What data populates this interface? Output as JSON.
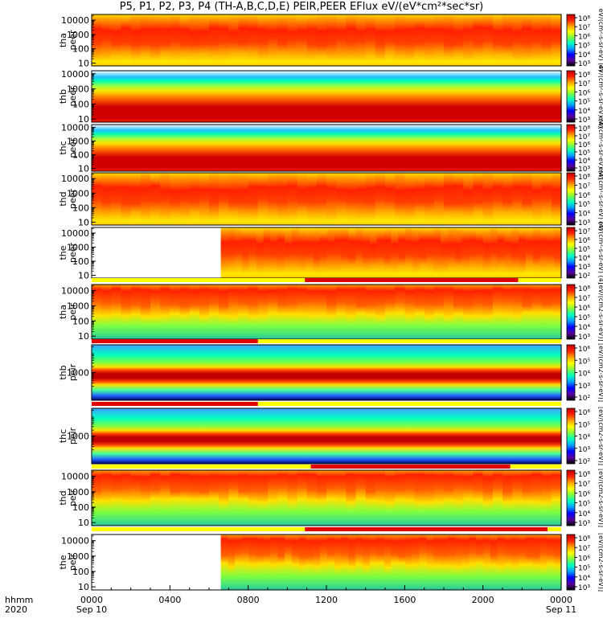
{
  "title": "P5, P1, P2, P3, P4 (TH-A,B,C,D,E) PEIR,PEER EFlux eV/(eV*cm²*sec*sr)",
  "time_axis": {
    "row_label_top": "hhmm",
    "row_label_bottom": "2020",
    "ticks": [
      {
        "hour": 0,
        "label": "0000",
        "date": "Sep 10"
      },
      {
        "hour": 4,
        "label": "0400",
        "date": ""
      },
      {
        "hour": 8,
        "label": "0800",
        "date": ""
      },
      {
        "hour": 12,
        "label": "1200",
        "date": ""
      },
      {
        "hour": 16,
        "label": "1600",
        "date": ""
      },
      {
        "hour": 20,
        "label": "2000",
        "date": ""
      },
      {
        "hour": 24,
        "label": "0000",
        "date": "Sep 11"
      }
    ]
  },
  "colorbar_label_electrons": "eV/(cm²-s-sr-eV) (4)",
  "colorbar_label_ions": "[eV/(cm2-s-sr-eV)]",
  "bottom_colorbar_label": "[eV/(cm2-s-sr-eV)]",
  "chart_data": {
    "type": "heatmap",
    "x_unit": "hour of day",
    "xlim": [
      0,
      24
    ],
    "colormap": [
      "#000000",
      "#5a00a0",
      "#0000ff",
      "#00a0ff",
      "#00ffc0",
      "#80ff40",
      "#ffff00",
      "#ffa000",
      "#ff2000",
      "#c00000"
    ],
    "panels": [
      {
        "id": "tha-peer",
        "probe": "tha",
        "species": "peer",
        "ylabel": [
          "tha",
          "peer"
        ],
        "yticks": [
          "10000",
          "1000",
          "100",
          "10"
        ],
        "yrange_log10": [
          0.8,
          4.4
        ],
        "cbar_ticks": [
          "10⁸",
          "10⁷",
          "10⁶",
          "10⁵",
          "10⁴",
          "10³"
        ],
        "data_start_hour": 0,
        "profile": "e-outer",
        "state_bar": null
      },
      {
        "id": "thb-peer",
        "probe": "thb",
        "species": "peer",
        "ylabel": [
          "thb",
          "peer"
        ],
        "yticks": [
          "10000",
          "1000",
          "100",
          "10"
        ],
        "yrange_log10": [
          0.8,
          4.2
        ],
        "cbar_ticks": [
          "10⁸",
          "10⁷",
          "10⁶",
          "10⁵",
          "10⁴",
          "10³"
        ],
        "data_start_hour": 0,
        "profile": "e-wind",
        "state_bar": null
      },
      {
        "id": "thc-peer",
        "probe": "thc",
        "species": "peer",
        "ylabel": [
          "thc",
          "peer"
        ],
        "yticks": [
          "10000",
          "1000",
          "100",
          "10"
        ],
        "yrange_log10": [
          0.8,
          4.2
        ],
        "cbar_ticks": [
          "10⁸",
          "10⁷",
          "10⁶",
          "10⁵",
          "10⁴",
          "10³"
        ],
        "data_start_hour": 0,
        "profile": "e-wind",
        "state_bar": null
      },
      {
        "id": "thd-peer",
        "probe": "thd",
        "species": "peer",
        "ylabel": [
          "thd",
          "peer"
        ],
        "yticks": [
          "10000",
          "1000",
          "100",
          "10"
        ],
        "yrange_log10": [
          0.8,
          4.4
        ],
        "cbar_ticks": [
          "10⁸",
          "10⁷",
          "10⁶",
          "10⁵",
          "10⁴",
          "10³"
        ],
        "data_start_hour": 0,
        "profile": "e-outer",
        "state_bar": null
      },
      {
        "id": "the-peer",
        "probe": "the",
        "species": "peer",
        "ylabel": [
          "the",
          "peer"
        ],
        "yticks": [
          "10000",
          "1000",
          "100",
          "10"
        ],
        "yrange_log10": [
          0.8,
          4.4
        ],
        "cbar_ticks": [
          "10⁷",
          "10⁶",
          "10⁵",
          "10⁴",
          "10³",
          "10²"
        ],
        "data_start_hour": 6.6,
        "profile": "e-outer",
        "state_bar": null
      },
      {
        "id": "tha-peir",
        "probe": "tha",
        "species": "peir",
        "ylabel": [
          "tha",
          "peir"
        ],
        "yticks": [
          "10000",
          "1000",
          "100",
          "10"
        ],
        "yrange_log10": [
          0.8,
          4.4
        ],
        "cbar_ticks": [
          "10⁸",
          "10⁷",
          "10⁶",
          "10⁵",
          "10⁴",
          "10³"
        ],
        "data_start_hour": 0,
        "profile": "i-outer",
        "state_bar": {
          "yellow_until_hour": 10.9,
          "red_from_hour": 10.9,
          "red_until_hour": 21.8
        }
      },
      {
        "id": "thb-peir",
        "probe": "thb",
        "species": "peir",
        "ylabel": [
          "thb",
          "peir"
        ],
        "yticks": [
          "1000"
        ],
        "yrange_log10": [
          1.6,
          4.4
        ],
        "cbar_ticks": [
          "10⁶",
          "10⁵",
          "10⁴",
          "10³",
          "10²"
        ],
        "data_start_hour": 0,
        "profile": "i-wind",
        "state_bar": {
          "red_until_hour": 8.5,
          "yellow_from_hour": 8.5
        }
      },
      {
        "id": "thc-peir",
        "probe": "thc",
        "species": "peir",
        "ylabel": [
          "thc",
          "peir"
        ],
        "yticks": [
          "1000"
        ],
        "yrange_log10": [
          1.6,
          4.4
        ],
        "cbar_ticks": [
          "10⁶",
          "10⁵",
          "10⁴",
          "10³",
          "10²"
        ],
        "data_start_hour": 0,
        "profile": "i-wind",
        "state_bar": {
          "red_until_hour": 8.5,
          "yellow_from_hour": 8.5
        }
      },
      {
        "id": "thd-peir",
        "probe": "thd",
        "species": "peir",
        "ylabel": [
          "thd",
          "peir"
        ],
        "yticks": [
          "10000",
          "1000",
          "100",
          "10"
        ],
        "yrange_log10": [
          0.8,
          4.4
        ],
        "cbar_ticks": [
          "10⁸",
          "10⁷",
          "10⁶",
          "10⁵",
          "10⁴",
          "10³"
        ],
        "data_start_hour": 0,
        "profile": "i-outer",
        "state_bar": {
          "yellow_until_hour": 11.2,
          "red_from_hour": 11.2,
          "red_until_hour": 21.4
        }
      },
      {
        "id": "the-peir",
        "probe": "the",
        "species": "peir",
        "ylabel": [
          "the",
          "peir"
        ],
        "yticks": [
          "10000",
          "1000",
          "100",
          "10"
        ],
        "yrange_log10": [
          0.8,
          4.4
        ],
        "cbar_ticks": [
          "10⁸",
          "10⁷",
          "10⁶",
          "10⁵",
          "10⁴",
          "10³"
        ],
        "data_start_hour": 6.6,
        "profile": "i-outer",
        "state_bar": {
          "yellow_until_hour": 10.9,
          "red_from_hour": 10.9,
          "red_until_hour": 23.3
        }
      }
    ]
  }
}
